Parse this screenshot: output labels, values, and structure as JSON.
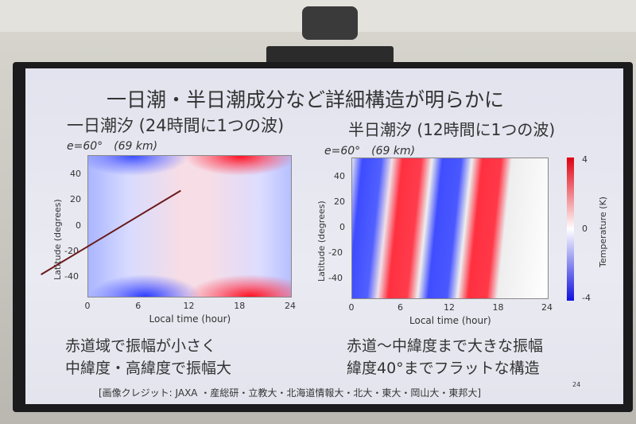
{
  "slide": {
    "title": "一日潮・半日潮成分など詳細構造が明らかに",
    "subtitle_left": "一日潮汐 (24時間に1つの波)",
    "subtitle_right": "半日潮汐 (12時間に1つの波)",
    "panel_left_label": "e=60°　(69 km)",
    "panel_right_label": "e=60°　(69 km)",
    "caption_left": [
      "赤道域で振幅が小さく",
      "中緯度・高緯度で振幅大"
    ],
    "caption_right": [
      "赤道〜中緯度まで大きな振幅",
      "緯度40°までフラットな構造"
    ],
    "credit": "[画像クレジット: JAXA ・産総研・立教大・北海道情報大・北大・東大・岡山大・東邦大]",
    "page_number": "24"
  },
  "chart_data": [
    {
      "type": "heatmap",
      "xlabel": "Local time (hour)",
      "ylabel": "Latitude (degrees)",
      "xticks": [
        "0",
        "6",
        "12",
        "18",
        "24"
      ],
      "yticks": [
        "40",
        "20",
        "0",
        "-20",
        "-40"
      ],
      "xlim": [
        0,
        24
      ],
      "ylim": [
        -55,
        55
      ],
      "description_of_pattern": "diurnal tide: one wave per 24 h, weak near equator, strong at mid/high latitudes",
      "colorbar": {
        "label": "Temperature (K)",
        "ticks": [
          "4",
          "0",
          "-4"
        ],
        "range": [
          -4,
          4
        ]
      }
    },
    {
      "type": "heatmap",
      "xlabel": "Local time (hour)",
      "ylabel": "Latitude (degrees)",
      "xticks": [
        "0",
        "6",
        "12",
        "18",
        "24"
      ],
      "yticks": [
        "40",
        "20",
        "0",
        "-20",
        "-40"
      ],
      "xlim": [
        0,
        24
      ],
      "ylim": [
        -55,
        55
      ],
      "colorbar": {
        "label": "Temperature (K)",
        "ticks": [
          "4",
          "0",
          "-4"
        ],
        "range": [
          -4,
          4
        ]
      }
    }
  ],
  "colors": {
    "positive": "#e00010",
    "negative": "#1010e0",
    "zero": "#ffffff"
  }
}
